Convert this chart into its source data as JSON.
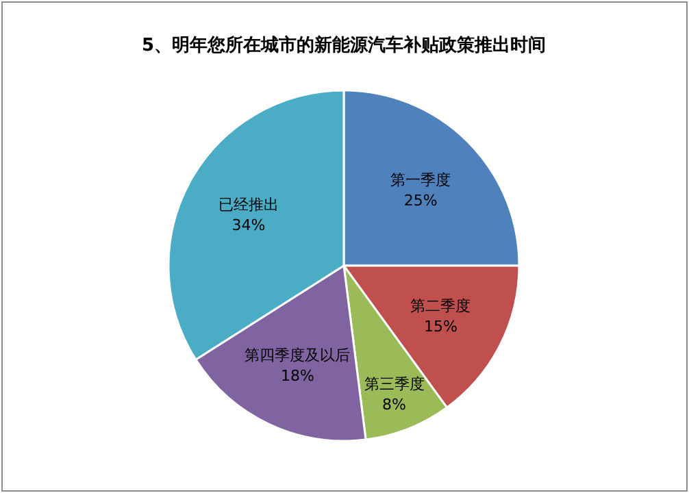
{
  "chart_data": {
    "type": "pie",
    "title": "5、明年您所在城市的新能源汽车补贴政策推出时间",
    "categories": [
      "第一季度",
      "第二季度",
      "第三季度",
      "第四季度及以后",
      "已经推出"
    ],
    "values": [
      25,
      15,
      8,
      18,
      34
    ],
    "colors": [
      "#4f81bd",
      "#c0504d",
      "#9bbb59",
      "#8064a2",
      "#4bacc6"
    ],
    "value_labels": [
      "25%",
      "15%",
      "8%",
      "18%",
      "34%"
    ]
  }
}
